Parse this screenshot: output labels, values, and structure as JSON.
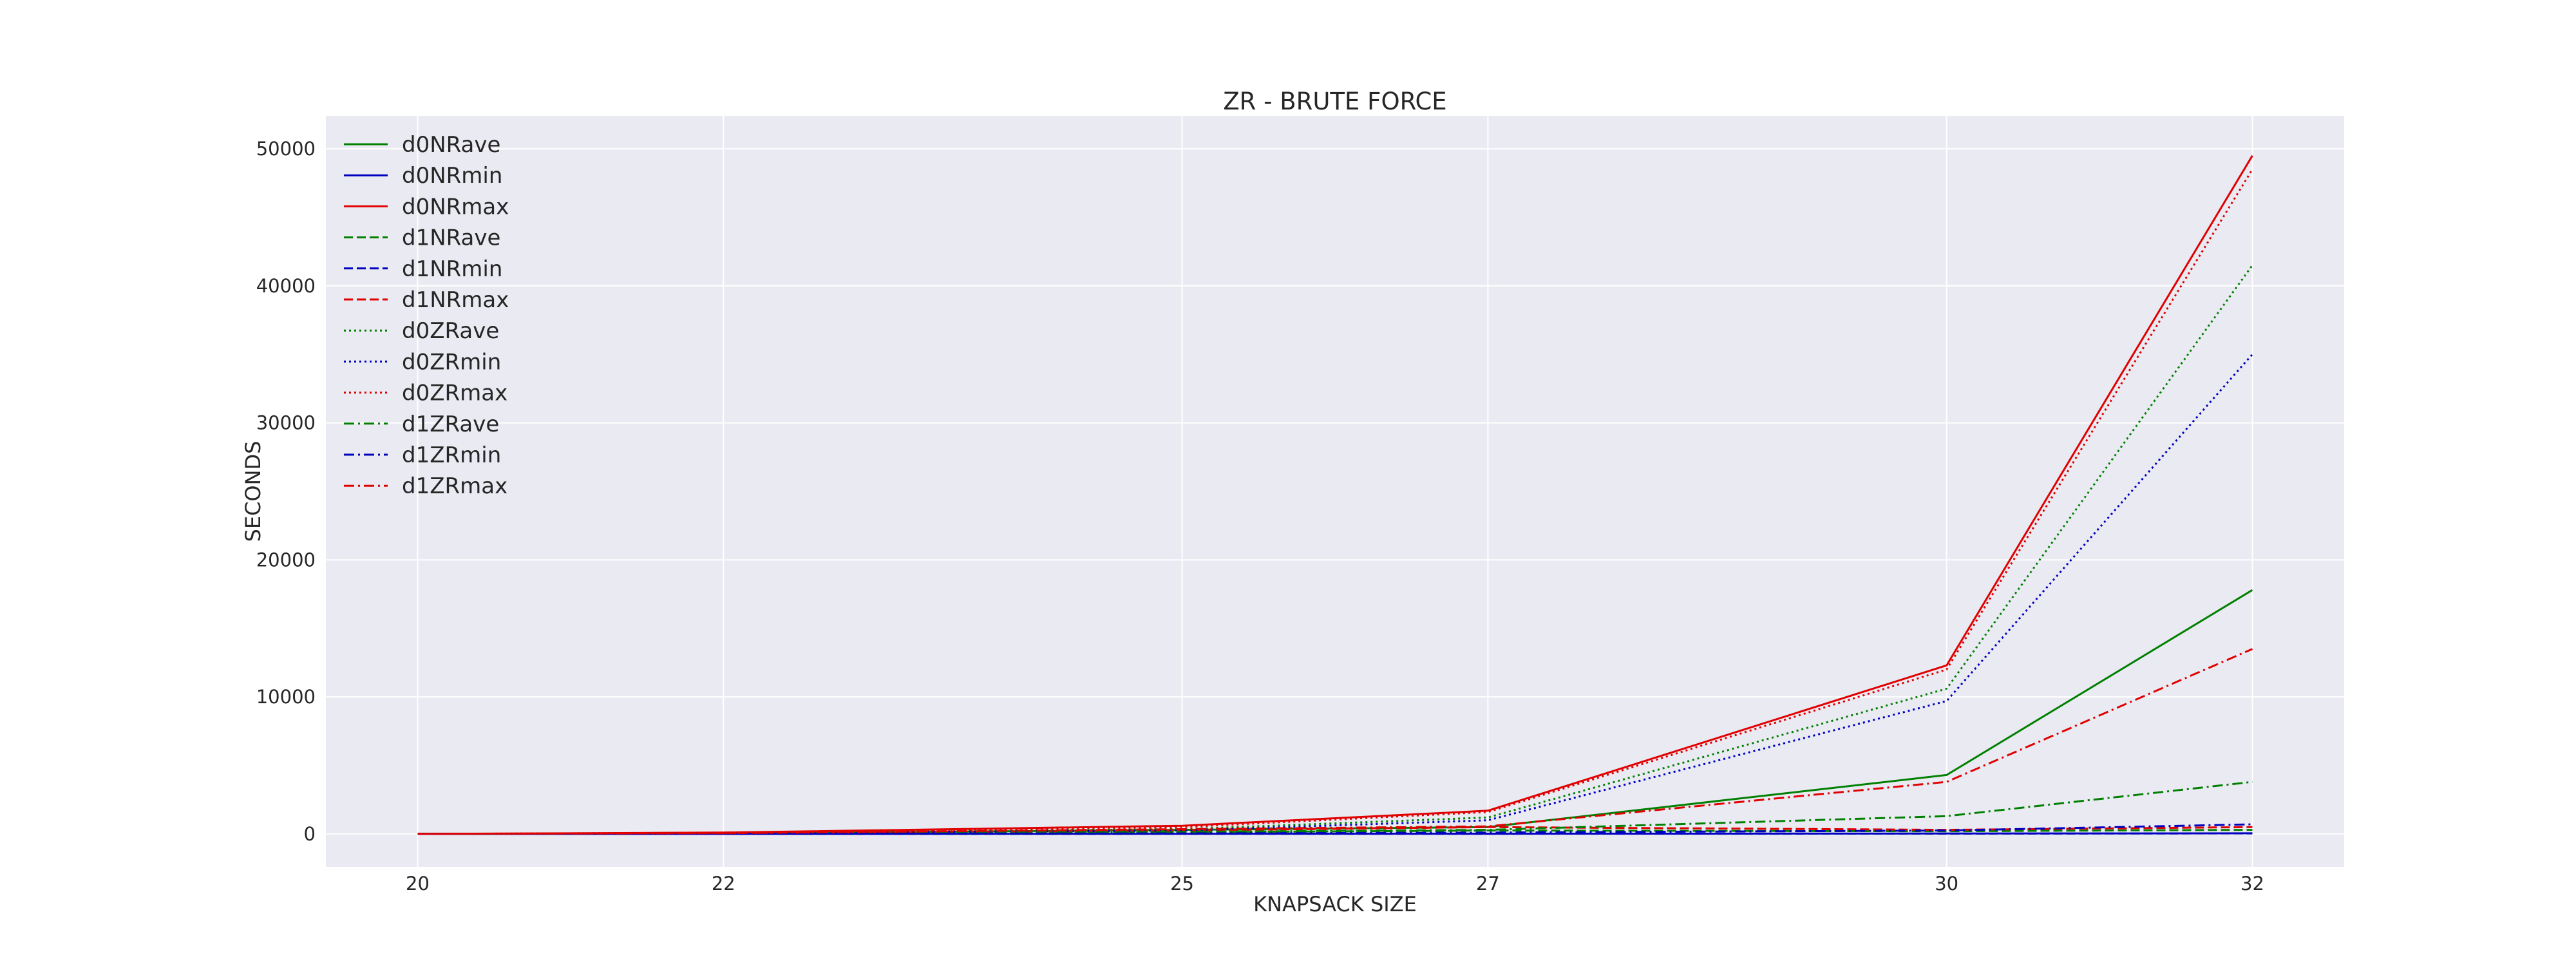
{
  "chart_data": {
    "type": "line",
    "title": "ZR - BRUTE FORCE",
    "xlabel": "KNAPSACK SIZE",
    "ylabel": "SECONDS",
    "x": [
      20,
      22,
      25,
      27,
      30,
      32
    ],
    "x_tick_labels": [
      "20",
      "22",
      "25",
      "27",
      "30",
      "32"
    ],
    "y_ticks": [
      0,
      10000,
      20000,
      30000,
      40000,
      50000
    ],
    "y_tick_labels": [
      "0",
      "10000",
      "20000",
      "30000",
      "40000",
      "50000"
    ],
    "xlim": [
      19.4,
      32.6
    ],
    "ylim": [
      -2400,
      52400
    ],
    "grid": true,
    "legend_position": "top-left",
    "plot_background": "#eaeaf2",
    "series": [
      {
        "name": "d0NRave",
        "color": "#008000",
        "dash": "solid",
        "values": [
          1,
          40,
          300,
          500,
          4300,
          17800
        ]
      },
      {
        "name": "d0NRmin",
        "color": "#0000bf",
        "dash": "solid",
        "values": [
          0,
          3,
          12,
          15,
          30,
          50
        ]
      },
      {
        "name": "d0NRmax",
        "color": "#e00000",
        "dash": "solid",
        "values": [
          2,
          100,
          600,
          1700,
          12300,
          49500
        ]
      },
      {
        "name": "d1NRave",
        "color": "#008000",
        "dash": "dashed",
        "values": [
          1,
          15,
          120,
          250,
          200,
          300
        ]
      },
      {
        "name": "d1NRmin",
        "color": "#0000bf",
        "dash": "dashed",
        "values": [
          0,
          2,
          8,
          10,
          20,
          40
        ]
      },
      {
        "name": "d1NRmax",
        "color": "#e00000",
        "dash": "dashed",
        "values": [
          2,
          50,
          250,
          500,
          300,
          500
        ]
      },
      {
        "name": "d0ZRave",
        "color": "#008000",
        "dash": "dotted",
        "values": [
          1,
          60,
          350,
          1200,
          10600,
          41500
        ]
      },
      {
        "name": "d0ZRmin",
        "color": "#0000bf",
        "dash": "dotted",
        "values": [
          0,
          40,
          250,
          1000,
          9700,
          35000
        ]
      },
      {
        "name": "d0ZRmax",
        "color": "#e00000",
        "dash": "dotted",
        "values": [
          2,
          90,
          500,
          1600,
          12000,
          48500
        ]
      },
      {
        "name": "d1ZRave",
        "color": "#008000",
        "dash": "dashdot",
        "values": [
          1,
          20,
          150,
          300,
          1300,
          3800
        ]
      },
      {
        "name": "d1ZRmin",
        "color": "#0000bf",
        "dash": "dashdot",
        "values": [
          0,
          5,
          40,
          100,
          250,
          700
        ]
      },
      {
        "name": "d1ZRmax",
        "color": "#e00000",
        "dash": "dashdot",
        "values": [
          2,
          60,
          350,
          550,
          3800,
          13500
        ]
      }
    ]
  }
}
